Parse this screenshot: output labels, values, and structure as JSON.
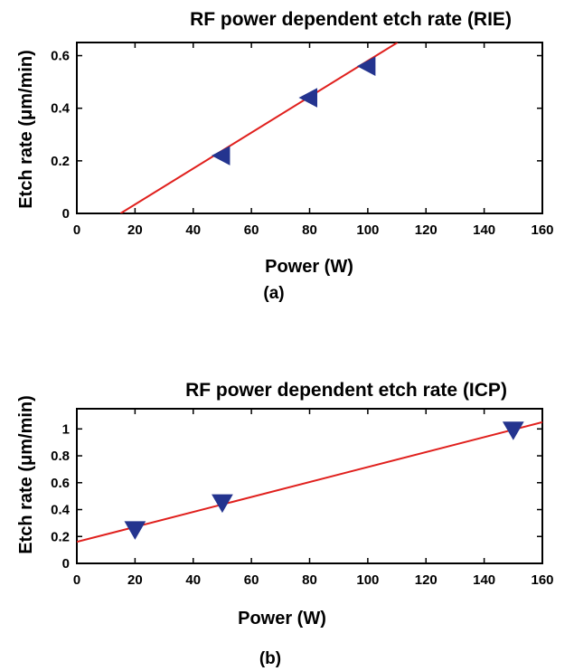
{
  "chart_data": [
    {
      "type": "scatter",
      "panel_label": "(a)",
      "title": "RF power dependent etch rate (RIE)",
      "xlabel": "Power (W)",
      "ylabel": "Etch rate (μm/min)",
      "xlim": [
        0,
        160
      ],
      "ylim": [
        0,
        0.65
      ],
      "xticks": [
        "0",
        "20",
        "40",
        "60",
        "80",
        "100",
        "120",
        "140",
        "160"
      ],
      "yticks": [
        "0",
        "0.2",
        "0.4",
        "0.6"
      ],
      "xtick_values": [
        0,
        20,
        40,
        60,
        80,
        100,
        120,
        140,
        160
      ],
      "ytick_values": [
        0,
        0.2,
        0.4,
        0.6
      ],
      "grid": false,
      "series": [
        {
          "marker": "left-triangle",
          "color": "#24348f",
          "points": [
            {
              "x": 50,
              "y": 0.22
            },
            {
              "x": 80,
              "y": 0.44
            },
            {
              "x": 100,
              "y": 0.56
            }
          ]
        }
      ],
      "fit_line": {
        "color": "#e0201d",
        "x": [
          15,
          110.2
        ],
        "y": [
          0,
          0.65
        ]
      }
    },
    {
      "type": "scatter",
      "panel_label": "(b)",
      "title": "RF power dependent etch rate (ICP)",
      "xlabel": "Power (W)",
      "ylabel": "Etch rate (μm/min)",
      "xlim": [
        0,
        160
      ],
      "ylim": [
        0,
        1.15
      ],
      "xticks": [
        "0",
        "20",
        "40",
        "60",
        "80",
        "100",
        "120",
        "140",
        "160"
      ],
      "yticks": [
        "0",
        "0.2",
        "0.4",
        "0.6",
        "0.8",
        "1"
      ],
      "xtick_values": [
        0,
        20,
        40,
        60,
        80,
        100,
        120,
        140,
        160
      ],
      "ytick_values": [
        0,
        0.2,
        0.4,
        0.6,
        0.8,
        1
      ],
      "grid": false,
      "series": [
        {
          "marker": "down-triangle",
          "color": "#24348f",
          "points": [
            {
              "x": 20,
              "y": 0.25
            },
            {
              "x": 50,
              "y": 0.45
            },
            {
              "x": 150,
              "y": 0.99
            }
          ]
        }
      ],
      "fit_line": {
        "color": "#e0201d",
        "x": [
          0,
          160
        ],
        "y": [
          0.16,
          1.05
        ]
      }
    }
  ]
}
